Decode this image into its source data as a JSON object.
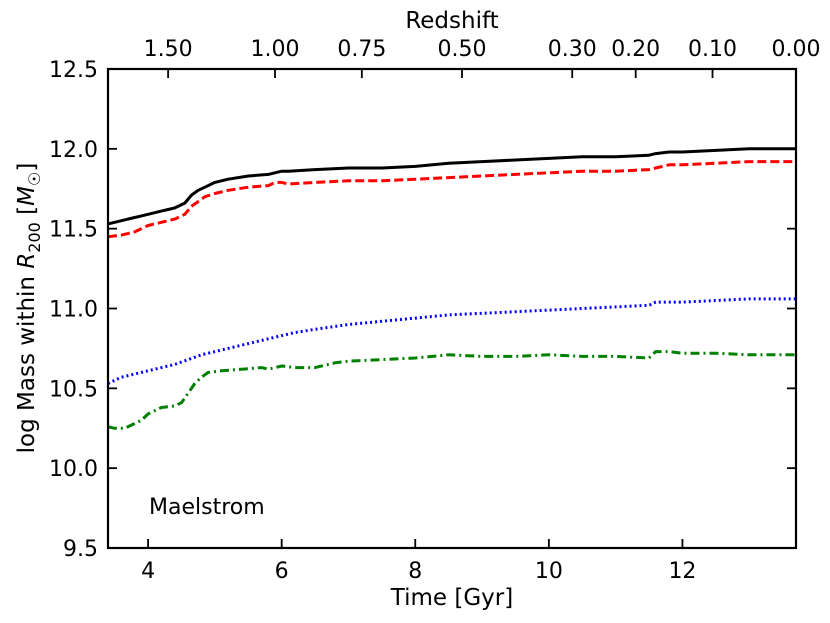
{
  "chart_data": {
    "type": "line",
    "xlabel": "Time [Gyr]",
    "ylabel": "log Mass within R200 [M☉]",
    "ylabel_parts": {
      "main": "log Mass within ",
      "r": "R",
      "r_sub": "200",
      "unit_open": " [",
      "unit_m": "M",
      "unit_sub": "☉",
      "unit_close": "]"
    },
    "top_xlabel": "Redshift",
    "annotation": "Maelstrom",
    "xlim": [
      3.4,
      13.7
    ],
    "ylim": [
      9.5,
      12.5
    ],
    "x_ticks": [
      4,
      6,
      8,
      10,
      12
    ],
    "y_ticks": [
      9.5,
      10.0,
      10.5,
      11.0,
      11.5,
      12.0,
      12.5
    ],
    "y_tick_labels": [
      "9.5",
      "10.0",
      "10.5",
      "11.0",
      "11.5",
      "12.0",
      "12.5"
    ],
    "redshift_ticks": [
      {
        "label": "1.50",
        "time": 4.3
      },
      {
        "label": "1.00",
        "time": 5.9
      },
      {
        "label": "0.75",
        "time": 7.2
      },
      {
        "label": "0.50",
        "time": 8.7
      },
      {
        "label": "0.30",
        "time": 10.35
      },
      {
        "label": "0.20",
        "time": 11.3
      },
      {
        "label": "0.10",
        "time": 12.45
      },
      {
        "label": "0.00",
        "time": 13.7
      }
    ],
    "series": [
      {
        "name": "black solid",
        "color": "#000000",
        "dash": "solid",
        "x": [
          3.4,
          3.6,
          3.8,
          3.9,
          4.0,
          4.2,
          4.3,
          4.4,
          4.55,
          4.65,
          4.75,
          4.85,
          5.0,
          5.2,
          5.5,
          5.8,
          5.9,
          6.0,
          6.1,
          6.5,
          7.0,
          7.5,
          8.0,
          8.5,
          9.0,
          9.5,
          10.0,
          10.5,
          11.0,
          11.5,
          11.6,
          11.8,
          12.0,
          12.5,
          13.0,
          13.7
        ],
        "y": [
          11.53,
          11.55,
          11.57,
          11.58,
          11.59,
          11.61,
          11.62,
          11.63,
          11.66,
          11.71,
          11.74,
          11.76,
          11.79,
          11.81,
          11.83,
          11.84,
          11.85,
          11.86,
          11.86,
          11.87,
          11.88,
          11.88,
          11.89,
          11.91,
          11.92,
          11.93,
          11.94,
          11.95,
          11.95,
          11.96,
          11.97,
          11.98,
          11.98,
          11.99,
          12.0,
          12.0
        ]
      },
      {
        "name": "red dashed",
        "color": "#ff0000",
        "dash": "dashed",
        "x": [
          3.4,
          3.6,
          3.8,
          3.9,
          4.0,
          4.2,
          4.4,
          4.55,
          4.65,
          4.75,
          4.85,
          5.0,
          5.2,
          5.5,
          5.8,
          5.9,
          6.0,
          6.1,
          6.5,
          7.0,
          7.5,
          8.0,
          8.5,
          9.0,
          9.5,
          10.0,
          10.5,
          11.0,
          11.5,
          11.6,
          11.8,
          12.0,
          12.5,
          13.0,
          13.7
        ],
        "y": [
          11.45,
          11.46,
          11.48,
          11.5,
          11.52,
          11.54,
          11.56,
          11.59,
          11.64,
          11.67,
          11.7,
          11.72,
          11.74,
          11.76,
          11.77,
          11.79,
          11.79,
          11.78,
          11.79,
          11.8,
          11.8,
          11.81,
          11.82,
          11.83,
          11.84,
          11.85,
          11.86,
          11.86,
          11.87,
          11.88,
          11.9,
          11.9,
          11.91,
          11.92,
          11.92
        ]
      },
      {
        "name": "blue dotted",
        "color": "#0000ff",
        "dash": "dotted",
        "x": [
          3.4,
          3.6,
          3.8,
          4.0,
          4.2,
          4.4,
          4.6,
          4.8,
          5.0,
          5.3,
          5.6,
          5.9,
          6.2,
          6.5,
          7.0,
          7.5,
          8.0,
          8.5,
          9.0,
          9.5,
          10.0,
          10.5,
          11.0,
          11.5,
          11.6,
          12.0,
          12.5,
          13.0,
          13.7
        ],
        "y": [
          10.53,
          10.57,
          10.59,
          10.61,
          10.63,
          10.65,
          10.68,
          10.71,
          10.73,
          10.76,
          10.79,
          10.82,
          10.85,
          10.87,
          10.9,
          10.92,
          10.94,
          10.96,
          10.97,
          10.98,
          10.99,
          11.0,
          11.01,
          11.02,
          11.04,
          11.04,
          11.05,
          11.06,
          11.06
        ]
      },
      {
        "name": "green dash-dot",
        "color": "#008000",
        "dash": "dashdot",
        "x": [
          3.4,
          3.5,
          3.65,
          3.8,
          3.9,
          4.0,
          4.2,
          4.4,
          4.5,
          4.6,
          4.7,
          4.8,
          4.9,
          5.1,
          5.4,
          5.7,
          5.8,
          6.0,
          6.2,
          6.5,
          6.8,
          7.0,
          7.5,
          8.0,
          8.5,
          9.0,
          9.5,
          10.0,
          10.5,
          11.0,
          11.5,
          11.6,
          11.8,
          12.0,
          12.5,
          13.0,
          13.7
        ],
        "y": [
          10.26,
          10.25,
          10.25,
          10.28,
          10.3,
          10.34,
          10.38,
          10.39,
          10.41,
          10.47,
          10.53,
          10.57,
          10.6,
          10.61,
          10.62,
          10.63,
          10.62,
          10.64,
          10.63,
          10.63,
          10.66,
          10.67,
          10.68,
          10.69,
          10.71,
          10.7,
          10.7,
          10.71,
          10.7,
          10.7,
          10.69,
          10.73,
          10.73,
          10.72,
          10.72,
          10.71,
          10.71
        ]
      }
    ]
  }
}
